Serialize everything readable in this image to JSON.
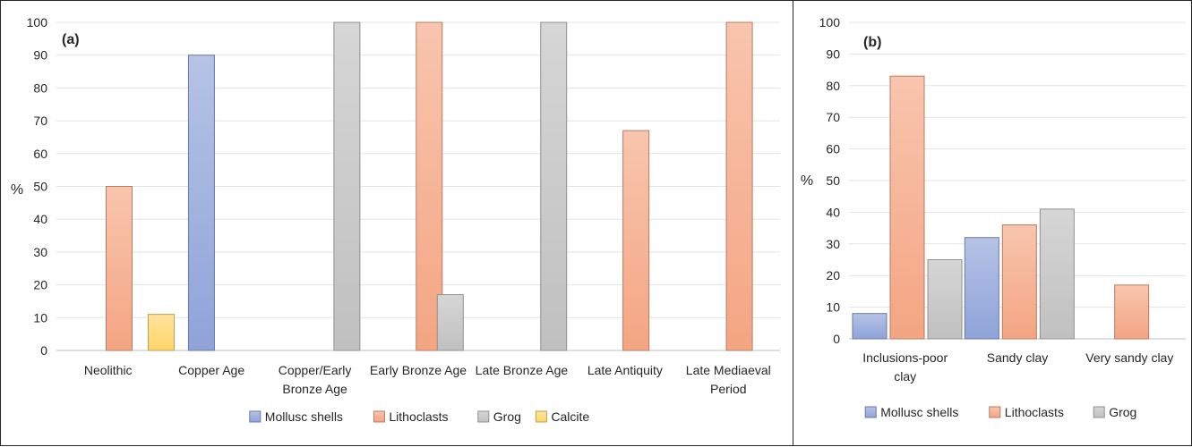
{
  "chart_data": [
    {
      "type": "bar",
      "panel_label": "(a)",
      "ylabel": "%",
      "ylim": [
        0,
        100
      ],
      "yticks": [
        0,
        10,
        20,
        30,
        40,
        50,
        60,
        70,
        80,
        90,
        100
      ],
      "grid": true,
      "legend_position": "bottom",
      "categories": [
        [
          "Neolithic"
        ],
        [
          "Copper Age"
        ],
        [
          "Copper/Early",
          "Bronze Age"
        ],
        [
          "Early Bronze Age"
        ],
        [
          "Late Bronze Age"
        ],
        [
          "Late Antiquity"
        ],
        [
          "Late Mediaeval",
          "Period"
        ]
      ],
      "series": [
        {
          "name": "Mollusc shells",
          "color": "#8FA3D9",
          "values": [
            0,
            90,
            0,
            0,
            0,
            0,
            0
          ]
        },
        {
          "name": "Lithoclasts",
          "color": "#F4A582",
          "values": [
            50,
            0,
            0,
            100,
            0,
            67,
            100
          ]
        },
        {
          "name": "Grog",
          "color": "#C0C0C0",
          "values": [
            0,
            0,
            100,
            17,
            100,
            0,
            0
          ]
        },
        {
          "name": "Calcite",
          "color": "#FFD56A",
          "values": [
            11,
            0,
            0,
            0,
            0,
            0,
            0
          ]
        }
      ]
    },
    {
      "type": "bar",
      "panel_label": "(b)",
      "ylabel": "%",
      "ylim": [
        0,
        100
      ],
      "yticks": [
        0,
        10,
        20,
        30,
        40,
        50,
        60,
        70,
        80,
        90,
        100
      ],
      "grid": true,
      "legend_position": "bottom",
      "categories": [
        [
          "Inclusions-poor",
          "clay"
        ],
        [
          "Sandy clay"
        ],
        [
          "Very sandy clay"
        ]
      ],
      "series": [
        {
          "name": "Mollusc shells",
          "color": "#8FA3D9",
          "values": [
            8,
            32,
            0
          ]
        },
        {
          "name": "Lithoclasts",
          "color": "#F4A582",
          "values": [
            83,
            36,
            17
          ]
        },
        {
          "name": "Grog",
          "color": "#C0C0C0",
          "values": [
            25,
            41,
            0
          ]
        }
      ]
    }
  ]
}
